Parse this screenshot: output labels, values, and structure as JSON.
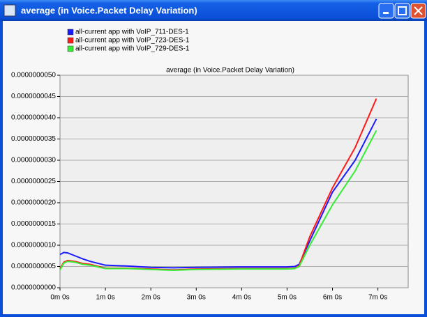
{
  "window": {
    "title": "average (in Voice.Packet Delay Variation)"
  },
  "chart_data": {
    "type": "line",
    "title": "average (in Voice.Packet Delay Variation)",
    "x": [
      0,
      5,
      10,
      20,
      30,
      40,
      60,
      90,
      120,
      150,
      180,
      240,
      300,
      310,
      316,
      330,
      360,
      390,
      418
    ],
    "series": [
      {
        "name": "all-current app with VoIP_711-DES-1",
        "color": "#1a1aff",
        "values": [
          7.8e-10,
          8.3e-10,
          8.2e-10,
          7.5e-10,
          6.8e-10,
          6.2e-10,
          5.3e-10,
          5.1e-10,
          4.8e-10,
          4.7e-10,
          4.8e-10,
          4.9e-10,
          4.9e-10,
          5e-10,
          5.5e-10,
          1.1e-09,
          2.25e-09,
          3e-09,
          3.97e-09
        ]
      },
      {
        "name": "all-current app with VoIP_723-DES-1",
        "color": "#ff1a1a",
        "values": [
          4.5e-10,
          6e-10,
          6.4e-10,
          6.2e-10,
          5.7e-10,
          5.5e-10,
          4.6e-10,
          4.6e-10,
          4.4e-10,
          4.2e-10,
          4.4e-10,
          4.5e-10,
          4.5e-10,
          4.6e-10,
          5.2e-10,
          1.2e-09,
          2.35e-09,
          3.3e-09,
          4.45e-09
        ]
      },
      {
        "name": "all-current app with VoIP_729-DES-1",
        "color": "#33ee33",
        "values": [
          4.2e-10,
          5.8e-10,
          6.2e-10,
          6e-10,
          5.5e-10,
          5.3e-10,
          4.5e-10,
          4.5e-10,
          4.3e-10,
          4.1e-10,
          4.3e-10,
          4.4e-10,
          4.4e-10,
          4.5e-10,
          5e-10,
          1e-09,
          1.95e-09,
          2.75e-09,
          3.7e-09
        ]
      }
    ],
    "xlim": [
      0,
      460
    ],
    "xticks": [
      {
        "value": 0,
        "label": "0m 0s"
      },
      {
        "value": 60,
        "label": "1m 0s"
      },
      {
        "value": 120,
        "label": "2m 0s"
      },
      {
        "value": 180,
        "label": "3m 0s"
      },
      {
        "value": 240,
        "label": "4m 0s"
      },
      {
        "value": 300,
        "label": "5m 0s"
      },
      {
        "value": 360,
        "label": "6m 0s"
      },
      {
        "value": 420,
        "label": "7m 0s"
      }
    ],
    "ylim": [
      0,
      5e-09
    ],
    "yticks": [
      {
        "value": 0,
        "label": "0.0000000000"
      },
      {
        "value": 5e-10,
        "label": "0.0000000005"
      },
      {
        "value": 1e-09,
        "label": "0.0000000010"
      },
      {
        "value": 1.5e-09,
        "label": "0.0000000015"
      },
      {
        "value": 2e-09,
        "label": "0.0000000020"
      },
      {
        "value": 2.5e-09,
        "label": "0.0000000025"
      },
      {
        "value": 3e-09,
        "label": "0.0000000030"
      },
      {
        "value": 3.5e-09,
        "label": "0.0000000035"
      },
      {
        "value": 4e-09,
        "label": "0.0000000040"
      },
      {
        "value": 4.5e-09,
        "label": "0.0000000045"
      },
      {
        "value": 5e-09,
        "label": "0.0000000050"
      }
    ],
    "grid": true
  }
}
